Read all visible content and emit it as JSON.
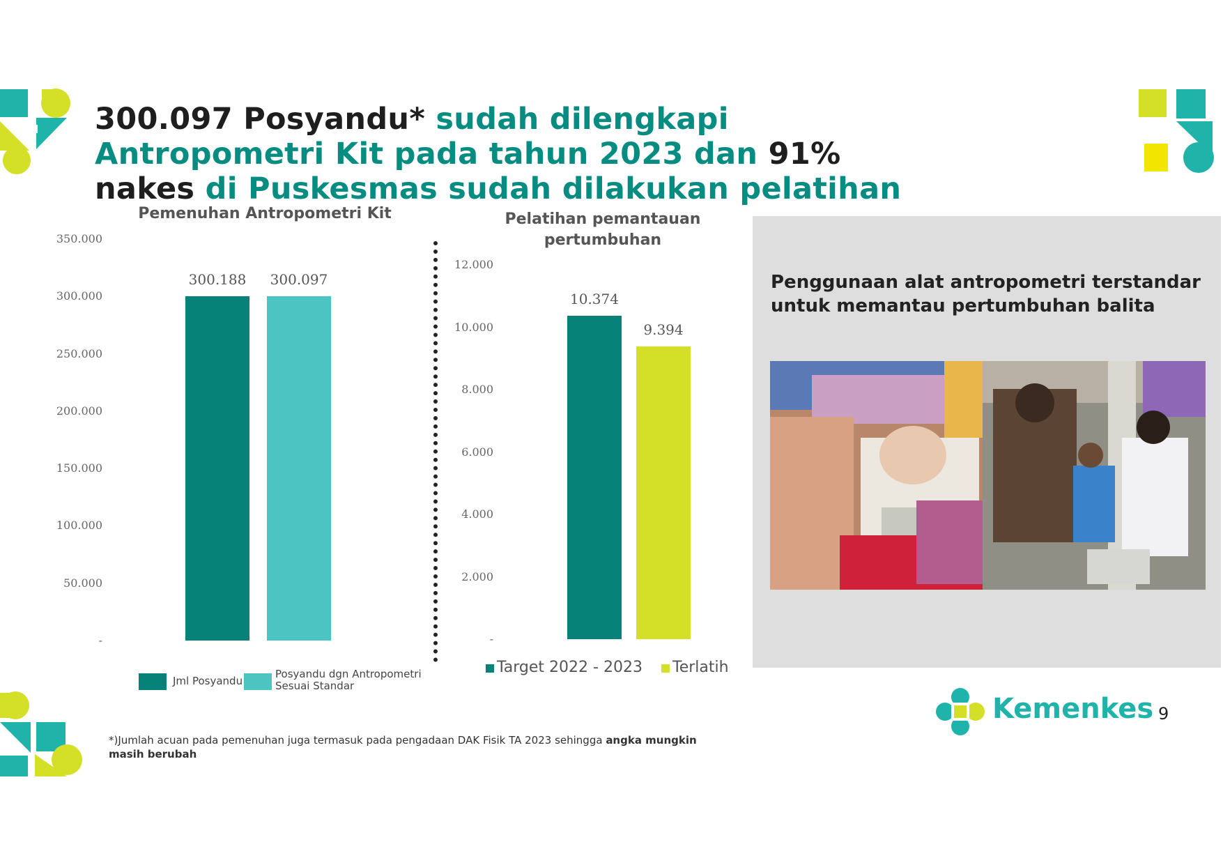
{
  "title": {
    "part1": "300.097 Posyandu*",
    "part2": " sudah dilengkapi Antropometri Kit pada tahun 2023 dan ",
    "part3": "91% nakes",
    "part4": " di Puskesmas sudah dilakukan pelatihan"
  },
  "colors": {
    "teal_dark": "#068279",
    "teal_light": "#4cc5c2",
    "lime": "#d4df27",
    "title_teal": "#068c80"
  },
  "chart_data": [
    {
      "type": "bar",
      "title": "Pemenuhan Antropometri Kit",
      "categories": [
        "Jml Posyandu",
        "Posyandu dgn Antropometri Sesuai Standar"
      ],
      "values": [
        300188,
        300097
      ],
      "data_labels": [
        "300.188",
        "300.097"
      ],
      "ylim": [
        0,
        350000
      ],
      "yticks": [
        "-",
        "50.000",
        "100.000",
        "150.000",
        "200.000",
        "250.000",
        "300.000",
        "350.000"
      ],
      "legend_position": "bottom",
      "legend": [
        "Jml Posyandu",
        "Posyandu dgn Antropometri Sesuai Standar"
      ],
      "colors": [
        "#068279",
        "#4cc5c2"
      ]
    },
    {
      "type": "bar",
      "title": "Pelatihan pemantauan pertumbuhan",
      "categories": [
        "Target 2022 - 2023",
        "Terlatih"
      ],
      "values": [
        10374,
        9394
      ],
      "data_labels": [
        "10.374",
        "9.394"
      ],
      "ylim": [
        0,
        12000
      ],
      "yticks": [
        "-",
        "2.000",
        "4.000",
        "6.000",
        "8.000",
        "10.000",
        "12.000"
      ],
      "legend_position": "bottom",
      "legend": [
        "Target 2022 - 2023",
        "Terlatih"
      ],
      "colors": [
        "#068279",
        "#d4df27"
      ]
    }
  ],
  "panel": {
    "caption": "Penggunaan alat antropometri terstandar untuk memantau pertumbuhan balita"
  },
  "footnote": {
    "normal": "*)Jumlah acuan pada pemenuhan juga termasuk pada pengadaan DAK Fisik TA 2023 sehingga ",
    "bold": "angka mungkin masih berubah"
  },
  "brand": {
    "name": "Kemenkes"
  },
  "page_number": "9"
}
